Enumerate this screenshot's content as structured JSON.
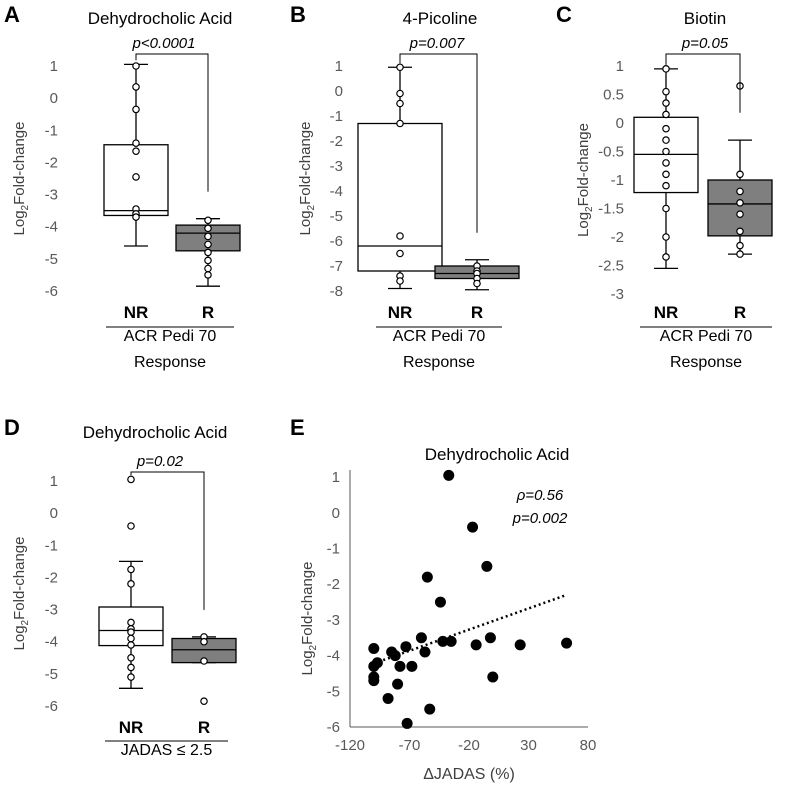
{
  "colors": {
    "box_filled": "#7f7f7f",
    "box_empty": "#ffffff",
    "line": "#000000",
    "tick": "#595959",
    "dot": "#000000"
  },
  "chart_data": [
    {
      "panel": "A",
      "type": "box",
      "title": "Dehydrocholic Acid",
      "ylabel_main": "Log",
      "ylabel_sub": "2",
      "ylabel_rest": "Fold-change",
      "ylim": [
        -6,
        1
      ],
      "yticks": [
        1,
        0,
        -1,
        -2,
        -3,
        -4,
        -5,
        -6
      ],
      "groups": [
        {
          "label": "NR",
          "filled": false,
          "whisker_low": -4.6,
          "q1": -3.65,
          "median": -3.5,
          "q3": -1.45,
          "whisker_high": 1.05,
          "points": [
            1.0,
            0.35,
            -0.35,
            -1.4,
            -1.65,
            -2.45,
            -3.45,
            -3.6,
            -3.7
          ]
        },
        {
          "label": "R",
          "filled": true,
          "whisker_low": -5.85,
          "q1": -4.75,
          "median": -4.2,
          "q3": -3.95,
          "whisker_high": -3.75,
          "points": [
            -3.8,
            -4.05,
            -4.3,
            -4.55,
            -4.8,
            -5.05,
            -5.3,
            -5.5
          ]
        }
      ],
      "pvalue": "p<0.0001",
      "xlabel_lines": [
        "ACR Pedi 70",
        "Response"
      ]
    },
    {
      "panel": "B",
      "type": "box",
      "title": "4-Picoline",
      "ylabel_main": "Log",
      "ylabel_sub": "2",
      "ylabel_rest": "Fold-change",
      "ylim": [
        -8,
        1
      ],
      "yticks": [
        1,
        0,
        -1,
        -2,
        -3,
        -4,
        -5,
        -6,
        -7,
        -8
      ],
      "groups": [
        {
          "label": "NR",
          "filled": false,
          "whisker_low": -7.9,
          "q1": -7.2,
          "median": -6.2,
          "q3": -1.3,
          "whisker_high": 0.95,
          "points": [
            0.95,
            -0.1,
            -0.5,
            -1.3,
            -5.8,
            -6.5,
            -7.4,
            -7.6
          ]
        },
        {
          "label": "R",
          "filled": true,
          "whisker_low": -7.95,
          "q1": -7.5,
          "median": -7.3,
          "q3": -7.0,
          "whisker_high": -6.75,
          "points": [
            -7.0,
            -7.2,
            -7.3,
            -7.5,
            -7.7
          ]
        }
      ],
      "pvalue": "p=0.007",
      "xlabel_lines": [
        "ACR Pedi 70",
        "Response"
      ]
    },
    {
      "panel": "C",
      "type": "box",
      "title": "Biotin",
      "ylabel_main": "Log",
      "ylabel_sub": "2",
      "ylabel_rest": "Fold-change",
      "ylim": [
        -3,
        1
      ],
      "yticks": [
        1,
        0.5,
        0,
        -0.5,
        -1,
        -1.5,
        -2,
        -2.5,
        -3
      ],
      "groups": [
        {
          "label": "NR",
          "filled": false,
          "whisker_low": -2.55,
          "q1": -1.22,
          "median": -0.55,
          "q3": 0.1,
          "whisker_high": 0.95,
          "points": [
            0.95,
            0.55,
            0.35,
            0.15,
            -0.1,
            -0.3,
            -0.5,
            -0.7,
            -0.9,
            -1.1,
            -1.5,
            -2.0,
            -2.35
          ]
        },
        {
          "label": "R",
          "filled": true,
          "whisker_low": -2.3,
          "q1": -1.98,
          "median": -1.42,
          "q3": -1.0,
          "whisker_high": -0.3,
          "points": [
            0.65,
            -0.9,
            -1.2,
            -1.4,
            -1.6,
            -1.9,
            -2.15,
            -2.3
          ]
        }
      ],
      "pvalue": "p=0.05",
      "xlabel_lines": [
        "ACR Pedi 70",
        "Response"
      ]
    },
    {
      "panel": "D",
      "type": "box",
      "title": "Dehydrocholic Acid",
      "ylabel_main": "Log",
      "ylabel_sub": "2",
      "ylabel_rest": "Fold-change",
      "ylim": [
        -6,
        1
      ],
      "yticks": [
        1,
        0,
        -1,
        -2,
        -3,
        -4,
        -5,
        -6
      ],
      "groups": [
        {
          "label": "NR",
          "filled": false,
          "whisker_low": -5.45,
          "q1": -4.12,
          "median": -3.65,
          "q3": -2.92,
          "whisker_high": -1.5,
          "points": [
            1.05,
            -0.4,
            -1.75,
            -2.2,
            -3.4,
            -3.6,
            -3.7,
            -3.9,
            -4.1,
            -4.5,
            -4.8,
            -5.1
          ]
        },
        {
          "label": "R",
          "filled": true,
          "whisker_low": -4.65,
          "q1": -4.65,
          "median": -4.25,
          "q3": -3.9,
          "whisker_high": -3.85,
          "points": [
            -3.85,
            -4.0,
            -4.6,
            -5.85
          ]
        }
      ],
      "pvalue": "p=0.02",
      "xlabel_lines": [
        "JADAS ≤ 2.5"
      ]
    },
    {
      "panel": "E",
      "type": "scatter",
      "title": "Dehydrocholic Acid",
      "ylabel_main": "Log",
      "ylabel_sub": "2",
      "ylabel_rest": "Fold-change",
      "xlabel": "ΔJADAS (%)",
      "xlim": [
        -120,
        80
      ],
      "ylim": [
        -6,
        1.2
      ],
      "xticks": [
        -120,
        -70,
        -20,
        30,
        80
      ],
      "yticks": [
        1,
        0,
        -1,
        -2,
        -3,
        -4,
        -5,
        -6
      ],
      "points": [
        [
          -100,
          -3.8
        ],
        [
          -100,
          -4.3
        ],
        [
          -100,
          -4.7
        ],
        [
          -100,
          -4.6
        ],
        [
          -97,
          -4.2
        ],
        [
          -88,
          -5.2
        ],
        [
          -85,
          -3.9
        ],
        [
          -82,
          -4.0
        ],
        [
          -80,
          -4.8
        ],
        [
          -78,
          -4.3
        ],
        [
          -73,
          -3.75
        ],
        [
          -72,
          -5.9
        ],
        [
          -68,
          -4.3
        ],
        [
          -60,
          -3.5
        ],
        [
          -57,
          -3.9
        ],
        [
          -55,
          -1.8
        ],
        [
          -53,
          -5.5
        ],
        [
          -44,
          -2.5
        ],
        [
          -42,
          -3.6
        ],
        [
          -37,
          1.05
        ],
        [
          -35,
          -3.6
        ],
        [
          -17,
          -0.4
        ],
        [
          -14,
          -3.7
        ],
        [
          -5,
          -1.5
        ],
        [
          -2,
          -3.5
        ],
        [
          0,
          -4.6
        ],
        [
          23,
          -3.7
        ],
        [
          62,
          -3.65
        ]
      ],
      "trendline": {
        "x": [
          -100,
          62
        ],
        "y": [
          -4.22,
          -2.3
        ]
      },
      "annotations": [
        "ρ=0.56",
        "p=0.002"
      ]
    }
  ]
}
